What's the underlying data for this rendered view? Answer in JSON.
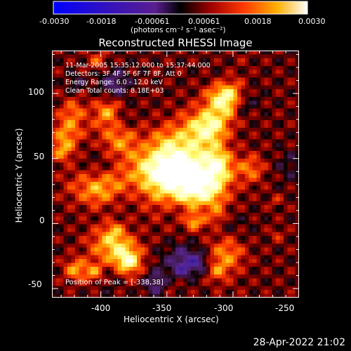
{
  "colorbar": {
    "ticks": [
      "-0.0030",
      "-0.0018",
      "-0.00061",
      "0.00061",
      "0.0018",
      "0.0030"
    ],
    "units_label": "(photons cm⁻² s⁻¹ asec⁻²)",
    "colors": [
      "#0000ff",
      "#2a00cc",
      "#6a1fa8",
      "#000000",
      "#8a0000",
      "#ff3000",
      "#ffa000",
      "#ffff80",
      "#ffffff"
    ]
  },
  "image": {
    "title": "Reconstructed RHESSI Image",
    "annotations": [
      "11-Mar-2005 15:35:12.000 to 15:37:44.000",
      "Detectors: 3F 4F 5F 6F 7F 8F, Att 0",
      "Energy Range: 6.0 - 12.0 keV",
      "Clean     Total counts: 8.18E+03"
    ],
    "peak_label": "Position of Peak = [-338,38]",
    "xlabel": "Heliocentric X (arcsec)",
    "ylabel": "Heliocentric Y (arcsec)",
    "x_ticks": [
      "-400",
      "-350",
      "-300",
      "-250"
    ],
    "y_ticks": [
      "100",
      "50",
      "0",
      "-50"
    ],
    "xlim": [
      -437,
      -250
    ],
    "ylim": [
      -57,
      133
    ],
    "peak": [
      -338,
      38
    ]
  },
  "footer": {
    "timestamp": "28-Apr-2022 21:02"
  }
}
